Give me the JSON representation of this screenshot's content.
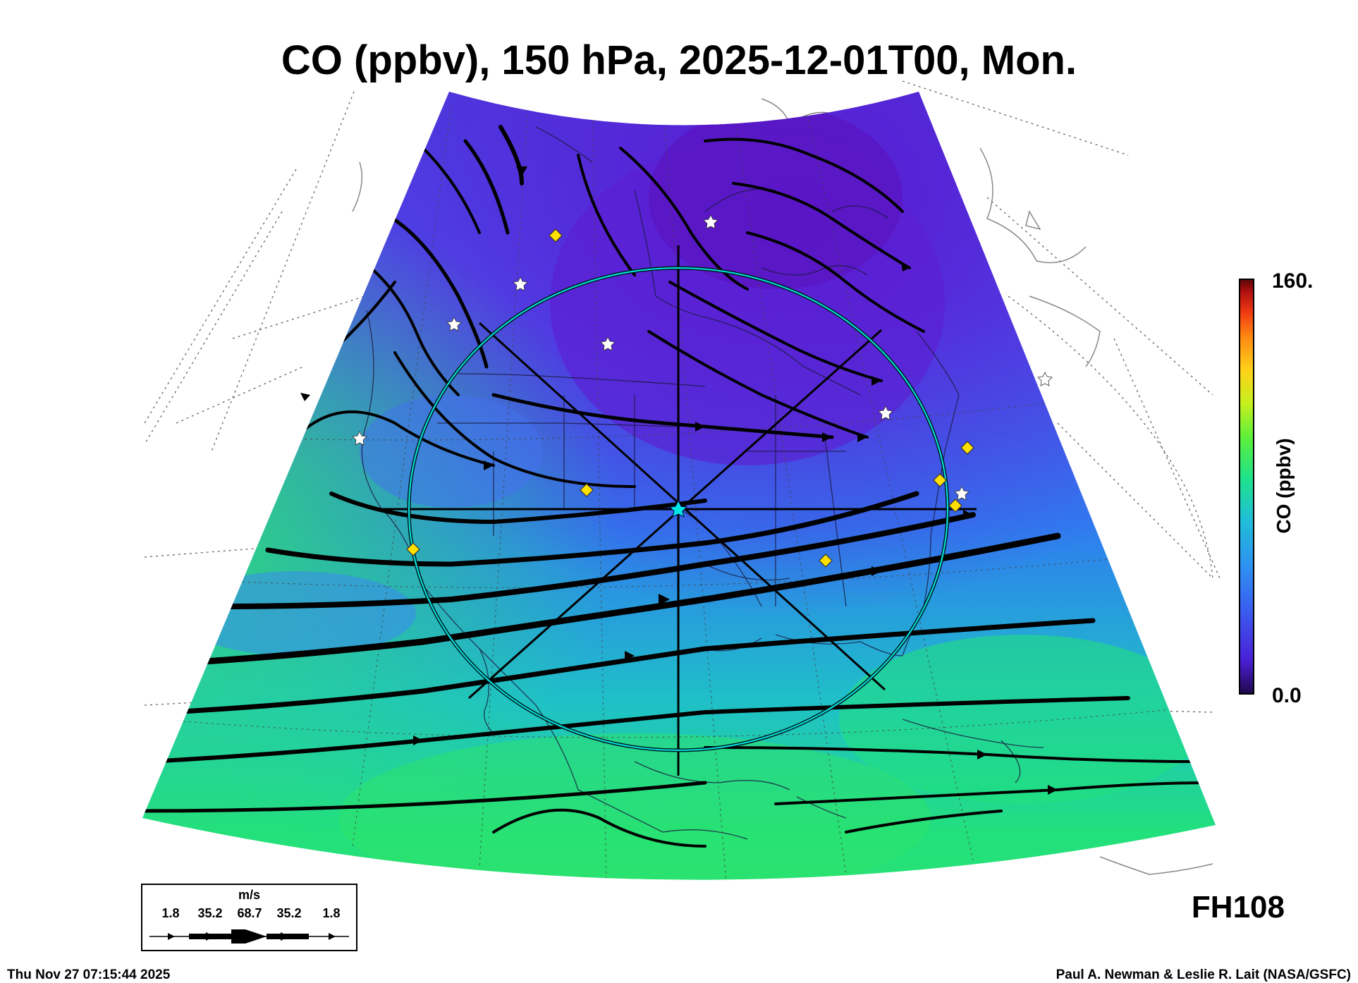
{
  "title": "CO (ppbv), 150 hPa, 2025-12-01T00, Mon.",
  "colorbar": {
    "max_label": "160.",
    "min_label": "0.0",
    "title": "CO (ppbv)",
    "colors": [
      "#2a0a6e",
      "#4a1fd6",
      "#3a5cf0",
      "#2f8ef2",
      "#1fbfd8",
      "#1fe28a",
      "#5ef03a",
      "#c6f01e",
      "#ffd21a",
      "#ff8a12",
      "#f03a12",
      "#b01010",
      "#6a0808"
    ]
  },
  "map_colors": {
    "low": "#5a2ad8",
    "mid": "#3a7af0",
    "high": "#22e27a"
  },
  "forecast_hour": "FH108",
  "wind_legend": {
    "unit": "m/s",
    "values": [
      "1.8",
      "35.2",
      "68.7",
      "35.2",
      "1.8"
    ]
  },
  "footer": {
    "timestamp": "Thu Nov 27 07:15:44 2025",
    "credit": "Paul A. Newman & Leslie R. Lait (NASA/GSFC)"
  },
  "markers": {
    "star_color": "#ffffff",
    "diamond_color": "#ffe000",
    "center_color": "#00e0e0"
  }
}
